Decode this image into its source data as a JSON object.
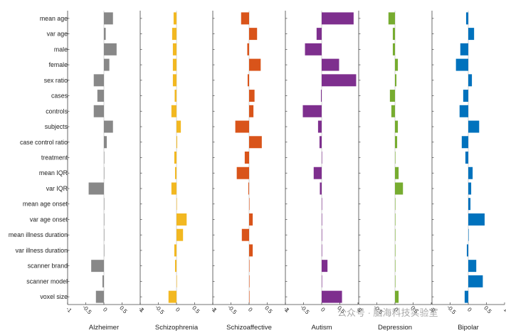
{
  "chart_data": {
    "type": "bar",
    "orientation": "horizontal",
    "features": [
      "mean age",
      "var age",
      "male",
      "female",
      "sex ratio",
      "cases",
      "controls",
      "subjects",
      "case control ratio",
      "treatment",
      "mean IQR",
      "var IQR",
      "mean age onset",
      "var age onset",
      "mean illness duration",
      "var illness duration",
      "scanner brand",
      "scanner model",
      "voxel size"
    ],
    "xlim": [
      -1,
      1
    ],
    "xticks": [
      -1,
      -0.5,
      0,
      0.5,
      1
    ],
    "xtick_labels": [
      "-1",
      "-0.5",
      "0",
      "0.5",
      "1"
    ],
    "grid": false,
    "series": [
      {
        "name": "Alzheimer",
        "color": "#888888",
        "values": [
          0.25,
          0.05,
          0.35,
          0.15,
          -0.28,
          -0.18,
          -0.28,
          0.25,
          0.08,
          0.0,
          0.0,
          -0.42,
          0.0,
          0.0,
          0.0,
          0.0,
          -0.35,
          -0.04,
          -0.22
        ]
      },
      {
        "name": "Schizophrenia",
        "color": "#F2B821",
        "values": [
          -0.08,
          -0.12,
          -0.1,
          -0.1,
          -0.1,
          -0.05,
          -0.14,
          0.12,
          0.02,
          -0.06,
          -0.04,
          -0.14,
          0.0,
          0.28,
          0.18,
          -0.06,
          -0.04,
          0.0,
          -0.22
        ]
      },
      {
        "name": "Schizoaffective",
        "color": "#D9541A",
        "values": [
          -0.22,
          0.22,
          -0.05,
          0.32,
          -0.04,
          0.15,
          0.12,
          -0.38,
          0.35,
          -0.12,
          -0.34,
          -0.02,
          0.0,
          0.1,
          -0.2,
          0.1,
          0.0,
          0.0,
          0.0
        ]
      },
      {
        "name": "Autism",
        "color": "#7E2F8E",
        "values": [
          0.88,
          -0.14,
          -0.46,
          0.48,
          0.95,
          -0.02,
          -0.52,
          -0.1,
          -0.06,
          0.0,
          -0.22,
          -0.05,
          0.0,
          0.0,
          0.0,
          0.0,
          0.16,
          0.0,
          0.56
        ]
      },
      {
        "name": "Depression",
        "color": "#77AC30",
        "values": [
          -0.18,
          -0.06,
          -0.06,
          0.08,
          0.04,
          -0.14,
          -0.1,
          0.08,
          0.06,
          0.0,
          0.1,
          0.22,
          0.0,
          0.0,
          0.0,
          0.0,
          0.0,
          0.0,
          0.1
        ]
      },
      {
        "name": "Bipolar",
        "color": "#0072BD",
        "values": [
          -0.06,
          0.16,
          -0.22,
          -0.34,
          0.1,
          -0.14,
          -0.24,
          0.3,
          -0.18,
          -0.08,
          0.12,
          0.08,
          0.06,
          0.45,
          0.0,
          -0.04,
          0.22,
          0.4,
          -0.1
        ]
      }
    ]
  },
  "watermark": "公众号 · 脑海科技实验室"
}
